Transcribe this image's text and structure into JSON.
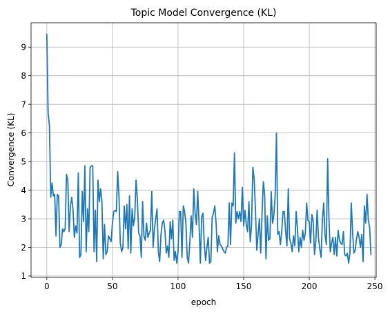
{
  "chart_data": {
    "type": "line",
    "title": "Topic Model Convergence (KL)",
    "xlabel": "epoch",
    "ylabel": "Convergence (KL)",
    "xlim": [
      -12,
      251
    ],
    "ylim": [
      0.95,
      9.85
    ],
    "xticks": [
      0,
      50,
      100,
      150,
      200,
      250
    ],
    "yticks": [
      1,
      2,
      3,
      4,
      5,
      6,
      7,
      8,
      9
    ],
    "grid": true,
    "line_color": "#1f77b4",
    "series": [
      {
        "values": [
          9.45,
          6.7,
          6.25,
          3.75,
          4.25,
          3.8,
          3.85,
          2.4,
          3.85,
          3.8,
          2.0,
          2.1,
          2.65,
          2.55,
          2.65,
          4.55,
          4.35,
          2.55,
          3.45,
          3.75,
          3.3,
          2.35,
          2.75,
          2.5,
          4.6,
          1.65,
          1.75,
          3.95,
          2.9,
          4.85,
          1.85,
          3.35,
          2.55,
          4.8,
          4.85,
          4.85,
          1.85,
          3.3,
          1.5,
          4.35,
          3.6,
          4.05,
          3.6,
          1.6,
          2.8,
          1.75,
          1.85,
          2.4,
          2.3,
          2.2,
          2.85,
          3.25,
          3.3,
          3.25,
          4.65,
          3.8,
          2.15,
          1.85,
          2.0,
          3.45,
          2.65,
          3.5,
          1.95,
          3.8,
          1.8,
          3.35,
          2.75,
          3.05,
          4.35,
          3.7,
          2.5,
          2.4,
          1.65,
          3.6,
          2.4,
          2.25,
          2.85,
          2.35,
          2.5,
          2.6,
          3.95,
          2.0,
          2.65,
          3.0,
          3.35,
          1.85,
          1.5,
          2.45,
          2.85,
          2.95,
          2.6,
          1.8,
          2.05,
          1.65,
          2.9,
          2.3,
          2.95,
          1.55,
          1.85,
          1.45,
          1.85,
          3.25,
          3.25,
          1.65,
          3.45,
          3.25,
          2.85,
          1.65,
          1.45,
          2.2,
          3.1,
          2.35,
          4.05,
          3.2,
          2.8,
          3.95,
          2.85,
          1.45,
          3.05,
          3.2,
          2.1,
          1.55,
          2.0,
          2.35,
          1.45,
          1.5,
          3.05,
          3.2,
          3.45,
          2.85,
          1.85,
          2.4,
          2.1,
          2.05,
          1.95,
          1.85,
          1.8,
          2.0,
          2.05,
          3.55,
          2.1,
          3.55,
          3.45,
          5.3,
          2.85,
          3.25,
          3.0,
          3.25,
          2.9,
          4.1,
          2.75,
          3.3,
          2.8,
          2.55,
          3.6,
          2.2,
          2.75,
          4.8,
          4.4,
          3.3,
          1.9,
          2.45,
          3.0,
          1.8,
          3.15,
          4.3,
          3.85,
          1.6,
          3.1,
          2.25,
          2.3,
          3.95,
          2.85,
          3.1,
          3.8,
          6.0,
          2.45,
          2.55,
          2.1,
          2.55,
          3.25,
          3.25,
          2.55,
          2.05,
          4.05,
          2.3,
          2.15,
          1.85,
          2.4,
          2.05,
          3.25,
          2.65,
          1.85,
          2.35,
          2.0,
          2.6,
          2.25,
          2.5,
          3.55,
          2.95,
          2.9,
          2.15,
          3.15,
          2.9,
          1.75,
          2.2,
          3.3,
          2.35,
          1.95,
          1.65,
          2.95,
          3.55,
          2.45,
          2.1,
          5.1,
          3.0,
          1.85,
          2.15,
          2.35,
          1.75,
          2.35,
          1.7,
          2.6,
          2.25,
          2.15,
          2.1,
          2.55,
          1.75,
          1.7,
          1.8,
          1.45,
          1.8,
          3.55,
          2.55,
          1.8,
          1.9,
          2.3,
          2.55,
          2.35,
          2.0,
          2.45,
          1.5,
          3.45,
          2.85,
          3.85,
          2.95,
          2.7,
          1.75
        ]
      }
    ]
  }
}
